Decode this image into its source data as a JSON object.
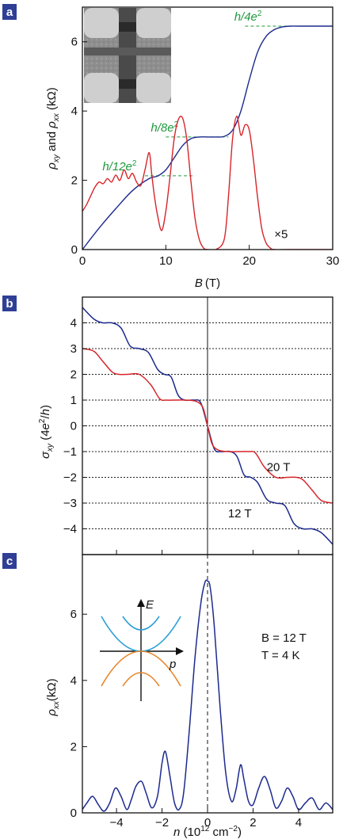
{
  "chart_data": [
    {
      "panel": "a",
      "type": "line",
      "xlabel_main": "B",
      "xlabel_unit": "(T)",
      "ylabel": "ρxy and ρxx (kΩ)",
      "xlim": [
        0,
        30
      ],
      "ylim": [
        0,
        7
      ],
      "x_ticks": [
        0,
        10,
        20,
        30
      ],
      "y_ticks": [
        0,
        2,
        4,
        6
      ],
      "series": [
        {
          "color": "#1c2a8e",
          "x": [
            0,
            2,
            4,
            6,
            8,
            9,
            10,
            11,
            12,
            13,
            14,
            15,
            16,
            17,
            18,
            19,
            20,
            21,
            22,
            23,
            24,
            25,
            26,
            30
          ],
          "y": [
            0,
            0.62,
            1.18,
            1.7,
            2.05,
            2.12,
            2.3,
            2.65,
            3.0,
            3.2,
            3.25,
            3.25,
            3.25,
            3.27,
            3.45,
            4.0,
            4.9,
            5.7,
            6.15,
            6.35,
            6.43,
            6.45,
            6.45,
            6.45
          ]
        },
        {
          "color": "#d7252a",
          "x": [
            0,
            0.5,
            1,
            1.5,
            2,
            2.5,
            3,
            3.5,
            4,
            4.5,
            5,
            5.5,
            6,
            6.5,
            7,
            7.5,
            8,
            8.3,
            8.6,
            9,
            9.5,
            10,
            10.5,
            11,
            11.5,
            12,
            12.5,
            13,
            13.5,
            14,
            14.5,
            15,
            16,
            17,
            17.5,
            18,
            18.5,
            19,
            19.5,
            20,
            20.5,
            21,
            21.5,
            22,
            22.5,
            23,
            25,
            30
          ],
          "y": [
            1.1,
            1.3,
            1.55,
            1.8,
            1.95,
            1.9,
            2.05,
            1.95,
            2.15,
            2.0,
            2.3,
            2.05,
            2.2,
            1.95,
            1.85,
            2.3,
            2.8,
            2.2,
            1.6,
            1.0,
            0.55,
            1.1,
            2.1,
            3.2,
            3.75,
            3.8,
            3.2,
            2.0,
            0.9,
            0.3,
            0.05,
            0.0,
            0.0,
            0.3,
            1.5,
            3.2,
            3.85,
            3.3,
            3.6,
            3.45,
            2.6,
            1.5,
            0.6,
            0.2,
            0.05,
            0.0,
            0.0,
            0.0
          ]
        }
      ],
      "annotations": [
        {
          "text": "h/4e",
          "sup": "2",
          "x": 21.5,
          "y": 6.45,
          "line_x": [
            19.5,
            26
          ]
        },
        {
          "text": "h/8e",
          "sup": "2",
          "x": 11.5,
          "y": 3.25,
          "line_x": [
            10,
            17.5
          ]
        },
        {
          "text": "h/12e",
          "sup": "2",
          "x": 6.5,
          "y": 2.13,
          "line_x": [
            7.5,
            13.5
          ]
        },
        {
          "text": "×5",
          "x": 23,
          "y": 0.45
        }
      ],
      "annotation_color": "#1f9a3e",
      "inset": "micrograph of Hall bar device"
    },
    {
      "panel": "b",
      "type": "line",
      "ylabel": "σxy (4e²/h)",
      "xlim": [
        -5.5,
        5.5
      ],
      "ylim": [
        -5,
        5
      ],
      "y_ticks": [
        4,
        3,
        2,
        1,
        0,
        -1,
        -2,
        -3,
        -4
      ],
      "y_tick_labels": [
        "4",
        "3",
        "2",
        "1",
        "0",
        "−1",
        "−2",
        "−3",
        "−4"
      ],
      "hlines": [
        4,
        3,
        2,
        1,
        0,
        -1,
        -2,
        -3,
        -4
      ],
      "series": [
        {
          "name": "12 T",
          "color": "#1c2a8e",
          "x": [
            -5.5,
            -5.0,
            -4.6,
            -4.2,
            -3.8,
            -3.4,
            -3.0,
            -2.6,
            -2.2,
            -1.9,
            -1.6,
            -1.3,
            -1.0,
            -0.6,
            -0.3,
            0.0,
            0.3,
            0.6,
            1.0,
            1.3,
            1.6,
            1.9,
            2.2,
            2.6,
            3.0,
            3.4,
            3.8,
            4.2,
            4.6,
            5.0,
            5.5
          ],
          "y": [
            4.6,
            4.15,
            4.0,
            4.0,
            3.8,
            3.1,
            3.0,
            2.85,
            2.2,
            2.0,
            1.9,
            1.2,
            1.0,
            1.0,
            0.9,
            0.0,
            -0.9,
            -1.0,
            -1.0,
            -1.2,
            -1.9,
            -2.0,
            -2.2,
            -2.85,
            -3.0,
            -3.1,
            -3.8,
            -4.0,
            -4.0,
            -4.15,
            -4.6
          ]
        },
        {
          "name": "20 T",
          "color": "#d7252a",
          "x": [
            -5.5,
            -5.0,
            -4.6,
            -4.2,
            -3.9,
            -3.5,
            -3.0,
            -2.5,
            -2.1,
            -1.8,
            -1.5,
            -1.0,
            -0.5,
            -0.2,
            0.0,
            0.2,
            0.5,
            1.0,
            1.5,
            1.8,
            2.1,
            2.5,
            3.0,
            3.5,
            3.9,
            4.2,
            4.6,
            5.0,
            5.5
          ],
          "y": [
            3.0,
            2.9,
            2.5,
            2.1,
            2.0,
            2.0,
            2.0,
            1.6,
            1.05,
            1.0,
            1.0,
            1.0,
            0.95,
            0.7,
            0.0,
            -0.7,
            -0.95,
            -1.0,
            -1.0,
            -1.0,
            -1.05,
            -1.6,
            -2.0,
            -2.0,
            -2.0,
            -2.1,
            -2.5,
            -2.9,
            -3.0
          ]
        }
      ],
      "labels": [
        {
          "text": "20 T",
          "x": 2.6,
          "y": -1.6
        },
        {
          "text": "12 T",
          "x": 0.9,
          "y": -3.4
        }
      ]
    },
    {
      "panel": "c",
      "type": "line",
      "xlabel": "n (10¹² cm⁻²)",
      "ylabel": "ρxx (kΩ)",
      "xlim": [
        -5.5,
        5.5
      ],
      "ylim": [
        0,
        7.8
      ],
      "x_ticks": [
        -4,
        -2,
        0,
        2,
        4
      ],
      "x_tick_labels": [
        "−4",
        "−2",
        "0",
        "2",
        "4"
      ],
      "y_ticks": [
        0,
        2,
        4,
        6
      ],
      "series": [
        {
          "color": "#1c2a8e",
          "x": [
            -5.5,
            -5.3,
            -5.05,
            -4.8,
            -4.55,
            -4.3,
            -4.05,
            -3.8,
            -3.55,
            -3.35,
            -3.15,
            -2.9,
            -2.7,
            -2.45,
            -2.2,
            -2.0,
            -1.85,
            -1.65,
            -1.45,
            -1.25,
            -1.05,
            -0.8,
            -0.55,
            -0.3,
            -0.12,
            0.0,
            0.12,
            0.3,
            0.55,
            0.8,
            1.05,
            1.25,
            1.45,
            1.6,
            1.8,
            2.0,
            2.25,
            2.5,
            2.75,
            3.0,
            3.25,
            3.5,
            3.75,
            4.0,
            4.3,
            4.6,
            4.9,
            5.2,
            5.5
          ],
          "y": [
            0.1,
            0.3,
            0.5,
            0.25,
            0.05,
            0.3,
            0.75,
            0.5,
            0.1,
            0.4,
            0.8,
            0.95,
            0.6,
            0.15,
            0.5,
            1.5,
            1.85,
            1.1,
            0.3,
            0.1,
            0.6,
            2.5,
            4.7,
            6.3,
            6.95,
            7.0,
            6.8,
            5.6,
            3.2,
            1.2,
            0.35,
            0.7,
            1.45,
            1.0,
            0.35,
            0.25,
            0.75,
            1.1,
            0.7,
            0.15,
            0.35,
            0.75,
            0.5,
            0.1,
            0.3,
            0.45,
            0.1,
            0.3,
            0.1
          ]
        }
      ],
      "text_B": "B = 12 T",
      "text_T": "T = 4 K",
      "inset": {
        "E_label": "E",
        "p_label": "p",
        "upper_color": "#2a9fd6",
        "lower_color": "#e8852a"
      }
    }
  ],
  "panel_labels": [
    "a",
    "b",
    "c"
  ]
}
